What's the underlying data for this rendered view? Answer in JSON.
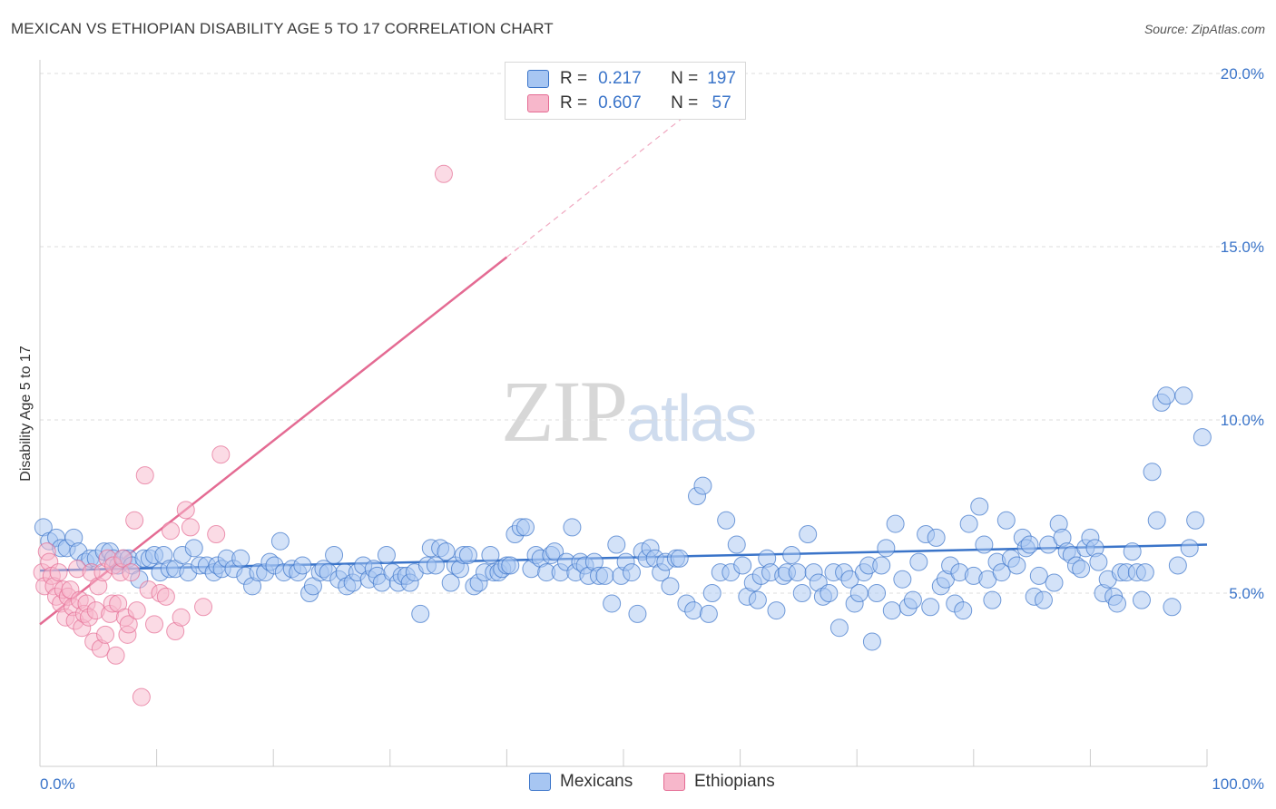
{
  "title": "MEXICAN VS ETHIOPIAN DISABILITY AGE 5 TO 17 CORRELATION CHART",
  "source": "Source: ZipAtlas.com",
  "watermark": {
    "zip": "ZIP",
    "atlas": "atlas"
  },
  "legend": {
    "r_label": "R =",
    "n_label": "N =",
    "rows": [
      {
        "r": "0.217",
        "n": "197",
        "color": "#a7c6f2"
      },
      {
        "r": "0.607",
        "n": " 57",
        "color": "#f7b7cb"
      }
    ]
  },
  "bottom_legend": [
    {
      "label": "Mexicans",
      "color": "#a7c6f2"
    },
    {
      "label": "Ethiopians",
      "color": "#f7b7cb"
    }
  ],
  "colors": {
    "blue": "#3a74c9",
    "blue_fill": "#a7c6f2",
    "pink": "#e46b93",
    "pink_fill": "#f7b7cb"
  },
  "chart_data": {
    "type": "scatter",
    "title": "MEXICAN VS ETHIOPIAN DISABILITY AGE 5 TO 17 CORRELATION CHART",
    "xlabel": "",
    "ylabel": "Disability Age 5 to 17",
    "xlim": [
      0,
      100
    ],
    "ylim": [
      0,
      21
    ],
    "x_tick_labels": [
      "0.0%",
      "100.0%"
    ],
    "y_ticks": [
      5,
      10,
      15,
      20
    ],
    "y_tick_labels": [
      "5.0%",
      "10.0%",
      "15.0%",
      "20.0%"
    ],
    "grid": true,
    "legend_position": "top-center",
    "series": [
      {
        "name": "Mexicans",
        "R": 0.217,
        "N": 197,
        "trend": {
          "x": [
            0,
            100
          ],
          "y": [
            5.65,
            6.4
          ]
        },
        "points": [
          [
            0.3,
            6.9
          ],
          [
            0.8,
            6.5
          ],
          [
            1.4,
            6.6
          ],
          [
            1.8,
            6.3
          ],
          [
            2.3,
            6.3
          ],
          [
            2.9,
            6.6
          ],
          [
            3.3,
            6.2
          ],
          [
            3.9,
            5.9
          ],
          [
            4.3,
            6.0
          ],
          [
            4.8,
            6.0
          ],
          [
            5.5,
            6.2
          ],
          [
            6.0,
            6.2
          ],
          [
            6.3,
            6.0
          ],
          [
            6.7,
            5.8
          ],
          [
            7.2,
            6.0
          ],
          [
            7.6,
            6.0
          ],
          [
            7.9,
            5.8
          ],
          [
            8.5,
            5.4
          ],
          [
            8.9,
            6.0
          ],
          [
            9.4,
            6.0
          ],
          [
            9.8,
            6.1
          ],
          [
            10.3,
            5.6
          ],
          [
            10.6,
            6.1
          ],
          [
            11.1,
            5.7
          ],
          [
            11.6,
            5.7
          ],
          [
            12.2,
            6.1
          ],
          [
            12.7,
            5.6
          ],
          [
            13.2,
            6.3
          ],
          [
            13.7,
            5.8
          ],
          [
            14.3,
            5.8
          ],
          [
            14.9,
            5.6
          ],
          [
            15.2,
            5.8
          ],
          [
            15.6,
            5.7
          ],
          [
            16.0,
            6.0
          ],
          [
            16.6,
            5.7
          ],
          [
            17.2,
            6.0
          ],
          [
            17.6,
            5.5
          ],
          [
            18.2,
            5.2
          ],
          [
            18.7,
            5.6
          ],
          [
            19.3,
            5.6
          ],
          [
            19.7,
            5.9
          ],
          [
            20.1,
            5.8
          ],
          [
            20.6,
            6.5
          ],
          [
            20.9,
            5.6
          ],
          [
            21.6,
            5.7
          ],
          [
            22.1,
            5.6
          ],
          [
            22.5,
            5.8
          ],
          [
            23.1,
            5.0
          ],
          [
            23.4,
            5.2
          ],
          [
            24.0,
            5.6
          ],
          [
            24.3,
            5.7
          ],
          [
            24.7,
            5.6
          ],
          [
            25.2,
            6.1
          ],
          [
            25.6,
            5.4
          ],
          [
            26.1,
            5.6
          ],
          [
            26.3,
            5.2
          ],
          [
            26.8,
            5.3
          ],
          [
            27.2,
            5.6
          ],
          [
            27.7,
            5.8
          ],
          [
            28.2,
            5.4
          ],
          [
            28.6,
            5.7
          ],
          [
            28.9,
            5.5
          ],
          [
            29.3,
            5.3
          ],
          [
            29.7,
            6.1
          ],
          [
            30.2,
            5.6
          ],
          [
            30.7,
            5.3
          ],
          [
            31.0,
            5.5
          ],
          [
            31.4,
            5.5
          ],
          [
            31.7,
            5.3
          ],
          [
            32.1,
            5.6
          ],
          [
            32.6,
            4.4
          ],
          [
            33.2,
            5.8
          ],
          [
            33.5,
            6.3
          ],
          [
            33.9,
            5.8
          ],
          [
            34.3,
            6.3
          ],
          [
            34.8,
            6.2
          ],
          [
            35.2,
            5.3
          ],
          [
            35.6,
            5.8
          ],
          [
            36.0,
            5.7
          ],
          [
            36.3,
            6.1
          ],
          [
            36.7,
            6.1
          ],
          [
            37.2,
            5.2
          ],
          [
            37.6,
            5.3
          ],
          [
            38.1,
            5.6
          ],
          [
            38.6,
            6.1
          ],
          [
            38.9,
            5.6
          ],
          [
            39.3,
            5.6
          ],
          [
            39.6,
            5.7
          ],
          [
            40.0,
            5.8
          ],
          [
            40.3,
            5.8
          ],
          [
            40.7,
            6.7
          ],
          [
            41.2,
            6.9
          ],
          [
            41.6,
            6.9
          ],
          [
            42.1,
            5.7
          ],
          [
            42.5,
            6.1
          ],
          [
            42.9,
            6.0
          ],
          [
            43.4,
            5.6
          ],
          [
            43.8,
            6.1
          ],
          [
            44.1,
            6.2
          ],
          [
            44.6,
            5.6
          ],
          [
            45.1,
            5.9
          ],
          [
            45.6,
            6.9
          ],
          [
            45.9,
            5.6
          ],
          [
            46.3,
            5.9
          ],
          [
            46.7,
            5.8
          ],
          [
            47.0,
            5.5
          ],
          [
            47.5,
            5.9
          ],
          [
            47.9,
            5.5
          ],
          [
            48.4,
            5.5
          ],
          [
            49.0,
            4.7
          ],
          [
            49.4,
            6.4
          ],
          [
            49.8,
            5.5
          ],
          [
            50.2,
            5.9
          ],
          [
            50.7,
            5.6
          ],
          [
            51.2,
            4.4
          ],
          [
            51.6,
            6.2
          ],
          [
            52.0,
            6.0
          ],
          [
            52.3,
            6.3
          ],
          [
            52.7,
            6.0
          ],
          [
            53.2,
            5.6
          ],
          [
            53.6,
            5.9
          ],
          [
            54.0,
            5.2
          ],
          [
            54.5,
            6.0
          ],
          [
            54.8,
            6.0
          ],
          [
            55.4,
            4.7
          ],
          [
            56.0,
            4.5
          ],
          [
            56.3,
            7.8
          ],
          [
            56.8,
            8.1
          ],
          [
            57.3,
            4.4
          ],
          [
            57.6,
            5.0
          ],
          [
            58.3,
            5.6
          ],
          [
            58.8,
            7.1
          ],
          [
            59.2,
            5.6
          ],
          [
            59.7,
            6.4
          ],
          [
            60.2,
            5.8
          ],
          [
            60.6,
            4.9
          ],
          [
            61.1,
            5.3
          ],
          [
            61.5,
            4.8
          ],
          [
            61.8,
            5.5
          ],
          [
            62.3,
            6.0
          ],
          [
            62.6,
            5.6
          ],
          [
            63.1,
            4.5
          ],
          [
            63.7,
            5.5
          ],
          [
            64.0,
            5.6
          ],
          [
            64.4,
            6.1
          ],
          [
            64.9,
            5.6
          ],
          [
            65.3,
            5.0
          ],
          [
            65.8,
            6.7
          ],
          [
            66.3,
            5.6
          ],
          [
            66.7,
            5.3
          ],
          [
            67.1,
            4.9
          ],
          [
            67.6,
            5.0
          ],
          [
            68.0,
            5.6
          ],
          [
            68.5,
            4.0
          ],
          [
            68.9,
            5.6
          ],
          [
            69.4,
            5.4
          ],
          [
            69.8,
            4.7
          ],
          [
            70.2,
            5.0
          ],
          [
            70.6,
            5.6
          ],
          [
            71.0,
            5.8
          ],
          [
            71.3,
            3.6
          ],
          [
            71.7,
            5.0
          ],
          [
            72.1,
            5.8
          ],
          [
            72.5,
            6.3
          ],
          [
            73.0,
            4.5
          ],
          [
            73.3,
            7.0
          ],
          [
            73.9,
            5.4
          ],
          [
            74.4,
            4.6
          ],
          [
            74.8,
            4.8
          ],
          [
            75.3,
            5.9
          ],
          [
            75.9,
            6.7
          ],
          [
            76.3,
            4.6
          ],
          [
            76.8,
            6.6
          ],
          [
            77.2,
            5.2
          ],
          [
            77.6,
            5.4
          ],
          [
            78.0,
            5.8
          ],
          [
            78.4,
            4.7
          ],
          [
            78.8,
            5.6
          ],
          [
            79.1,
            4.5
          ],
          [
            79.6,
            7.0
          ],
          [
            80.0,
            5.5
          ],
          [
            80.5,
            7.5
          ],
          [
            80.9,
            6.4
          ],
          [
            81.2,
            5.4
          ],
          [
            81.6,
            4.8
          ],
          [
            82.0,
            5.9
          ],
          [
            82.4,
            5.6
          ],
          [
            82.8,
            7.1
          ],
          [
            83.2,
            6.0
          ],
          [
            83.7,
            5.8
          ],
          [
            84.2,
            6.6
          ],
          [
            84.5,
            6.3
          ],
          [
            84.8,
            6.4
          ],
          [
            85.2,
            4.9
          ],
          [
            85.6,
            5.5
          ],
          [
            86.0,
            4.8
          ],
          [
            86.4,
            6.4
          ],
          [
            86.9,
            5.3
          ],
          [
            87.3,
            7.0
          ],
          [
            87.6,
            6.6
          ],
          [
            88.0,
            6.2
          ],
          [
            88.4,
            6.1
          ],
          [
            88.8,
            5.8
          ],
          [
            89.2,
            5.7
          ],
          [
            89.6,
            6.3
          ],
          [
            90.0,
            6.6
          ],
          [
            90.4,
            6.3
          ],
          [
            90.7,
            5.9
          ],
          [
            91.1,
            5.0
          ],
          [
            91.5,
            5.4
          ],
          [
            92.0,
            4.9
          ],
          [
            92.3,
            4.7
          ],
          [
            92.6,
            5.6
          ],
          [
            93.1,
            5.6
          ],
          [
            93.6,
            6.2
          ],
          [
            94.0,
            5.6
          ],
          [
            94.4,
            4.8
          ],
          [
            94.7,
            5.6
          ],
          [
            95.3,
            8.5
          ],
          [
            95.7,
            7.1
          ],
          [
            96.1,
            10.5
          ],
          [
            96.5,
            10.7
          ],
          [
            97.0,
            4.6
          ],
          [
            97.5,
            5.8
          ],
          [
            98.0,
            10.7
          ],
          [
            98.5,
            6.3
          ],
          [
            99.0,
            7.1
          ],
          [
            99.6,
            9.5
          ]
        ]
      },
      {
        "name": "Ethiopians",
        "R": 0.607,
        "N": 57,
        "trend": {
          "x": [
            0,
            40
          ],
          "y": [
            4.1,
            14.7
          ]
        },
        "trend_extension": {
          "x": [
            40,
            55
          ],
          "y": [
            14.7,
            18.7
          ]
        },
        "points": [
          [
            0.2,
            5.6
          ],
          [
            0.4,
            5.2
          ],
          [
            0.6,
            6.2
          ],
          [
            0.8,
            5.9
          ],
          [
            1.0,
            5.5
          ],
          [
            1.2,
            5.2
          ],
          [
            1.4,
            4.9
          ],
          [
            1.6,
            5.6
          ],
          [
            1.8,
            4.7
          ],
          [
            2.0,
            5.1
          ],
          [
            2.2,
            4.3
          ],
          [
            2.4,
            4.9
          ],
          [
            2.6,
            5.1
          ],
          [
            2.8,
            4.6
          ],
          [
            3.0,
            4.2
          ],
          [
            3.2,
            5.7
          ],
          [
            3.4,
            4.8
          ],
          [
            3.6,
            4.0
          ],
          [
            3.8,
            4.4
          ],
          [
            4.0,
            4.7
          ],
          [
            4.2,
            4.3
          ],
          [
            4.4,
            5.6
          ],
          [
            4.6,
            3.6
          ],
          [
            4.8,
            4.5
          ],
          [
            5.0,
            5.2
          ],
          [
            5.2,
            3.4
          ],
          [
            5.4,
            5.6
          ],
          [
            5.6,
            3.8
          ],
          [
            5.8,
            6.0
          ],
          [
            6.0,
            4.4
          ],
          [
            6.2,
            4.7
          ],
          [
            6.3,
            5.8
          ],
          [
            6.5,
            3.2
          ],
          [
            6.7,
            4.7
          ],
          [
            6.9,
            5.6
          ],
          [
            7.1,
            6.0
          ],
          [
            7.3,
            4.3
          ],
          [
            7.5,
            3.8
          ],
          [
            7.6,
            4.1
          ],
          [
            7.8,
            5.6
          ],
          [
            8.1,
            7.1
          ],
          [
            8.3,
            4.5
          ],
          [
            8.7,
            2.0
          ],
          [
            9.0,
            8.4
          ],
          [
            9.3,
            5.1
          ],
          [
            9.8,
            4.1
          ],
          [
            10.3,
            5.0
          ],
          [
            10.8,
            4.9
          ],
          [
            11.2,
            6.8
          ],
          [
            11.6,
            3.9
          ],
          [
            12.1,
            4.3
          ],
          [
            12.5,
            7.4
          ],
          [
            12.9,
            6.9
          ],
          [
            14.0,
            4.6
          ],
          [
            15.1,
            6.7
          ],
          [
            15.5,
            9.0
          ],
          [
            34.6,
            17.1
          ]
        ]
      }
    ]
  }
}
